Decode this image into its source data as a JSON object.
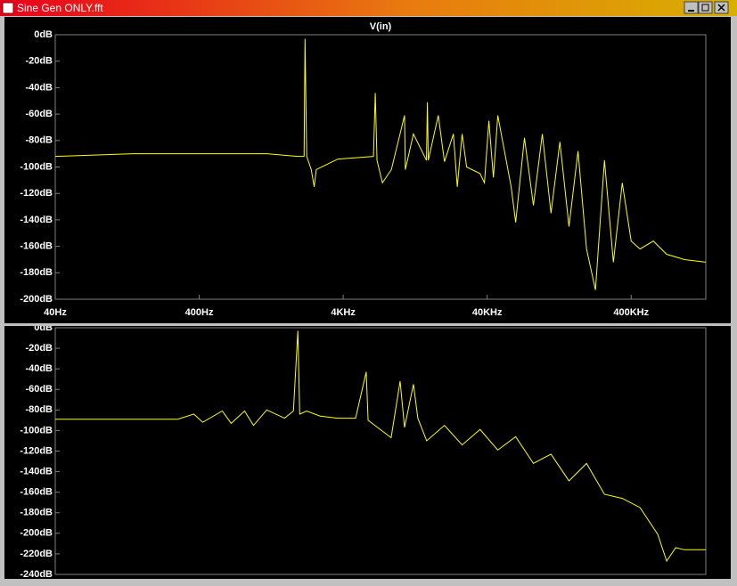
{
  "window": {
    "title": "Sine Gen ONLY.fft"
  },
  "chart_data": [
    {
      "type": "line",
      "title": "V(in)",
      "xscale": "log",
      "x": [
        40,
        139,
        400,
        1178,
        1937,
        2140,
        2172,
        2232,
        2400,
        2514,
        2600,
        3673,
        6490,
        6680,
        6870,
        7490,
        8640,
        10670,
        10800,
        12300,
        15150,
        15380,
        15600,
        18300,
        20200,
        23300,
        24800,
        26800,
        28800,
        35700,
        38300,
        41100,
        44200,
        47400,
        58700,
        63100,
        72600,
        83800,
        96600,
        111000,
        128000,
        148000,
        171000,
        196000,
        226000,
        261000,
        301000,
        347000,
        400000,
        461000,
        570000,
        706000,
        938000,
        1320000
      ],
      "series": [
        {
          "color": "#ffff00",
          "values": [
            -92,
            -90,
            -90,
            -90,
            -92,
            -92,
            -3,
            -92,
            -102,
            -115,
            -102,
            -94,
            -92,
            -44,
            -95,
            -112,
            -102,
            -61,
            -102,
            -75,
            -95,
            -51,
            -95,
            -61,
            -96,
            -75,
            -115,
            -75,
            -100,
            -105,
            -112,
            -65,
            -108,
            -61,
            -115,
            -142,
            -78,
            -129,
            -75,
            -135,
            -81,
            -145,
            -88,
            -162,
            -193,
            -95,
            -172,
            -112,
            -156,
            -162,
            -156,
            -166,
            -170,
            -172
          ]
        }
      ],
      "xlim": [
        40,
        1320000
      ],
      "xticks": [
        {
          "value": 40,
          "label": "40Hz"
        },
        {
          "value": 400,
          "label": "400Hz"
        },
        {
          "value": 4000,
          "label": "4KHz"
        },
        {
          "value": 40000,
          "label": "40KHz"
        },
        {
          "value": 400000,
          "label": "400KHz"
        }
      ],
      "ylim": [
        -200,
        0
      ],
      "yticks": [
        {
          "value": 0,
          "label": "0dB"
        },
        {
          "value": -20,
          "label": "-20dB"
        },
        {
          "value": -40,
          "label": "-40dB"
        },
        {
          "value": -60,
          "label": "-60dB"
        },
        {
          "value": -80,
          "label": "-80dB"
        },
        {
          "value": -100,
          "label": "-100dB"
        },
        {
          "value": -120,
          "label": "-120dB"
        },
        {
          "value": -140,
          "label": "-140dB"
        },
        {
          "value": -160,
          "label": "-160dB"
        },
        {
          "value": -180,
          "label": "-180dB"
        },
        {
          "value": -200,
          "label": "-200dB"
        }
      ]
    },
    {
      "type": "line",
      "xscale": "log",
      "x": [
        40,
        284,
        367,
        423,
        578,
        667,
        826,
        953,
        1178,
        1567,
        1804,
        1937,
        1995,
        2233,
        2767,
        3673,
        4876,
        5780,
        5956,
        8610,
        9940,
        10670,
        12300,
        13200,
        15200,
        20200,
        26800,
        35700,
        47400,
        63100,
        83800,
        111000,
        148000,
        196000,
        261000,
        347000,
        461000,
        612000,
        706000,
        815000,
        938000,
        1320000
      ],
      "series": [
        {
          "color": "#ffff00",
          "values": [
            -89,
            -89,
            -84,
            -92,
            -81,
            -93,
            -81,
            -95,
            -80,
            -88,
            -81,
            -3,
            -84,
            -81,
            -86,
            -88,
            -88,
            -43,
            -90,
            -107,
            -52,
            -97,
            -55,
            -88,
            -110,
            -95,
            -114,
            -99,
            -119,
            -106,
            -132,
            -123,
            -149,
            -132,
            -162,
            -166,
            -175,
            -201,
            -227,
            -214,
            -216,
            -216
          ]
        }
      ],
      "xlim": [
        40,
        1320000
      ],
      "ylim": [
        -240,
        0
      ],
      "yticks": [
        {
          "value": 0,
          "label": "0dB"
        },
        {
          "value": -20,
          "label": "-20dB"
        },
        {
          "value": -40,
          "label": "-40dB"
        },
        {
          "value": -60,
          "label": "-60dB"
        },
        {
          "value": -80,
          "label": "-80dB"
        },
        {
          "value": -100,
          "label": "-100dB"
        },
        {
          "value": -120,
          "label": "-120dB"
        },
        {
          "value": -140,
          "label": "-140dB"
        },
        {
          "value": -160,
          "label": "-160dB"
        },
        {
          "value": -180,
          "label": "-180dB"
        },
        {
          "value": -200,
          "label": "-200dB"
        },
        {
          "value": -220,
          "label": "-220dB"
        },
        {
          "value": -240,
          "label": "-240dB"
        }
      ]
    }
  ]
}
